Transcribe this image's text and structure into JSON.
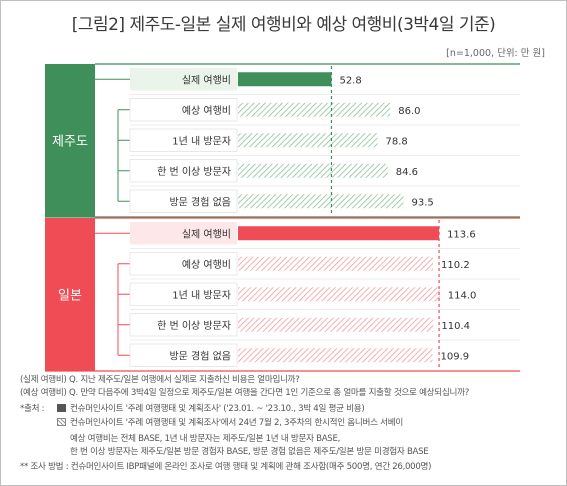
{
  "title": "[그림2] 제주도-일본 실제 여행비와 예상 여행비(3박4일 기준)",
  "unit_note": "[n=1,000, 단위: 만 원]",
  "colors": {
    "jeju_accent": "#3f8f5a",
    "japan_accent": "#ef4c55",
    "jeju_label_bg": "#eaf4ea",
    "japan_label_bg": "#fde7e8"
  },
  "chart_data": {
    "type": "bar",
    "orientation": "horizontal",
    "xlim": [
      0,
      118
    ],
    "groups": [
      {
        "name": "제주도",
        "color": "#3f8f5a",
        "categories": [
          "실제 여행비",
          "예상 여행비",
          "1년 내 방문자",
          "한 번 이상 방문자",
          "방문 경험 없음"
        ],
        "values": [
          52.8,
          86.0,
          78.8,
          84.6,
          93.5
        ],
        "value_labels": [
          "52.8",
          "86.0",
          "78.8",
          "84.6",
          "93.5"
        ],
        "solid": [
          true,
          false,
          false,
          false,
          false
        ]
      },
      {
        "name": "일본",
        "color": "#ef4c55",
        "categories": [
          "실제 여행비",
          "예상 여행비",
          "1년 내 방문자",
          "한 번 이상 방문자",
          "방문 경험 없음"
        ],
        "values": [
          113.6,
          110.2,
          114.0,
          110.4,
          109.9
        ],
        "value_labels": [
          "113.6",
          "110.2",
          "114.0",
          "110.4",
          "109.9"
        ],
        "solid": [
          true,
          false,
          false,
          false,
          false
        ]
      }
    ]
  },
  "footnotes": {
    "q_actual": "(실제 여행비) Q. 지난 제주도/일본 여행에서 실제로 지출하신 비용은 얼마입니까?",
    "q_expected": "(예상 여행비) Q. 만약 다음주에 3박4일 일정으로 제주도/일본 여행을 간다면 1인 기준으로 총 얼마를 지출할 것으로 예상되십니까?",
    "source_label": "*출처 :",
    "source_1": "컨슈머인사이트 '주례 여행행태 및 계획조사' ('23.01. ~ '23.10., 3박 4일 평균 비용)",
    "source_2": "컨슈머인사이트 '주례 여행행태 및 계획조사'에서 24년 7월 2, 3주차의 한시적인 옴니버스 서베이",
    "base_1": "예상 여행비는 전체 BASE, 1년 내 방문자는 제주도/일본 1년 내 방문자 BASE,",
    "base_2": "한 번 이상 방문자는 제주도/일본 방문 경험자 BASE, 방문 경험 없음은 제주도/일본 방문 미경험자 BASE",
    "method": "** 조사 방법 : 컨슈머인사이트 IBP패널에 온라인 조사로 여행 행태 및 계획에 관해 조사함(매주 500명, 연간 26,000명)"
  }
}
